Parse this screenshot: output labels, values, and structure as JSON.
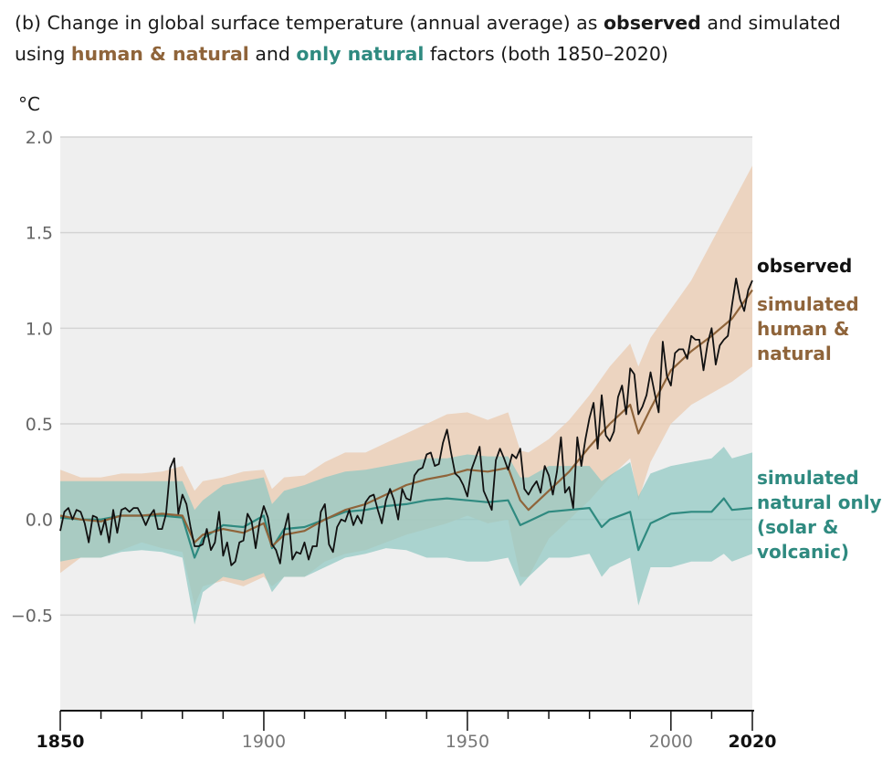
{
  "title": {
    "part1": "(b) Change in global surface temperature (annual average) as ",
    "observed": "observed",
    "part2": " and simulated using ",
    "human_natural": "human & natural",
    "part3": " and ",
    "only_natural": "only natural",
    "part4": " factors (both 1850–2020)"
  },
  "colors": {
    "observed": "#111111",
    "human_natural": "#8f643a",
    "human_natural_band": "#ebcdb4",
    "natural": "#2f8a80",
    "natural_band": "#8fc8c2",
    "plot_bg": "#efefef",
    "grid": "#d4d4d4"
  },
  "chart_data": {
    "type": "line",
    "ylabel": "°C",
    "ylim": [
      -1.0,
      2.0
    ],
    "xlim": [
      1850,
      2020
    ],
    "y_ticks": [
      "2.0",
      "1.5",
      "1.0",
      "0.5",
      "0.0",
      "−0.5"
    ],
    "y_tick_values": [
      2.0,
      1.5,
      1.0,
      0.5,
      0.0,
      -0.5
    ],
    "x_ticks": [
      {
        "label": "1850",
        "value": 1850,
        "bold": true
      },
      {
        "label": "1900",
        "value": 1900,
        "bold": false
      },
      {
        "label": "1950",
        "value": 1950,
        "bold": false
      },
      {
        "label": "2000",
        "value": 2000,
        "bold": false
      },
      {
        "label": "2020",
        "value": 2020,
        "bold": true
      }
    ],
    "grid": true,
    "series": [
      {
        "name": "observed",
        "label_lines": [
          "observed"
        ],
        "x": [
          1850,
          1851,
          1852,
          1853,
          1854,
          1855,
          1856,
          1857,
          1858,
          1859,
          1860,
          1861,
          1862,
          1863,
          1864,
          1865,
          1866,
          1867,
          1868,
          1869,
          1870,
          1871,
          1872,
          1873,
          1874,
          1875,
          1876,
          1877,
          1878,
          1879,
          1880,
          1881,
          1882,
          1883,
          1884,
          1885,
          1886,
          1887,
          1888,
          1889,
          1890,
          1891,
          1892,
          1893,
          1894,
          1895,
          1896,
          1897,
          1898,
          1899,
          1900,
          1901,
          1902,
          1903,
          1904,
          1905,
          1906,
          1907,
          1908,
          1909,
          1910,
          1911,
          1912,
          1913,
          1914,
          1915,
          1916,
          1917,
          1918,
          1919,
          1920,
          1921,
          1922,
          1923,
          1924,
          1925,
          1926,
          1927,
          1928,
          1929,
          1930,
          1931,
          1932,
          1933,
          1934,
          1935,
          1936,
          1937,
          1938,
          1939,
          1940,
          1941,
          1942,
          1943,
          1944,
          1945,
          1946,
          1947,
          1948,
          1949,
          1950,
          1951,
          1952,
          1953,
          1954,
          1955,
          1956,
          1957,
          1958,
          1959,
          1960,
          1961,
          1962,
          1963,
          1964,
          1965,
          1966,
          1967,
          1968,
          1969,
          1970,
          1971,
          1972,
          1973,
          1974,
          1975,
          1976,
          1977,
          1978,
          1979,
          1980,
          1981,
          1982,
          1983,
          1984,
          1985,
          1986,
          1987,
          1988,
          1989,
          1990,
          1991,
          1992,
          1993,
          1994,
          1995,
          1996,
          1997,
          1998,
          1999,
          2000,
          2001,
          2002,
          2003,
          2004,
          2005,
          2006,
          2007,
          2008,
          2009,
          2010,
          2011,
          2012,
          2013,
          2014,
          2015,
          2016,
          2017,
          2018,
          2019,
          2020
        ],
        "values": [
          -0.06,
          0.04,
          0.06,
          0.0,
          0.05,
          0.04,
          -0.02,
          -0.12,
          0.02,
          0.01,
          -0.08,
          0.0,
          -0.12,
          0.05,
          -0.07,
          0.05,
          0.06,
          0.04,
          0.06,
          0.06,
          0.02,
          -0.03,
          0.02,
          0.05,
          -0.05,
          -0.05,
          0.03,
          0.27,
          0.32,
          0.03,
          0.13,
          0.08,
          -0.04,
          -0.14,
          -0.14,
          -0.13,
          -0.05,
          -0.16,
          -0.12,
          0.04,
          -0.19,
          -0.12,
          -0.24,
          -0.22,
          -0.12,
          -0.11,
          0.03,
          -0.01,
          -0.15,
          -0.01,
          0.07,
          0.01,
          -0.13,
          -0.16,
          -0.23,
          -0.06,
          0.03,
          -0.21,
          -0.17,
          -0.18,
          -0.12,
          -0.21,
          -0.14,
          -0.14,
          0.04,
          0.08,
          -0.13,
          -0.17,
          -0.04,
          0.0,
          -0.01,
          0.05,
          -0.03,
          0.02,
          -0.02,
          0.09,
          0.12,
          0.13,
          0.05,
          -0.02,
          0.1,
          0.16,
          0.1,
          0.0,
          0.16,
          0.11,
          0.1,
          0.23,
          0.26,
          0.27,
          0.34,
          0.35,
          0.28,
          0.29,
          0.4,
          0.47,
          0.35,
          0.24,
          0.22,
          0.18,
          0.12,
          0.26,
          0.32,
          0.38,
          0.15,
          0.1,
          0.05,
          0.31,
          0.37,
          0.32,
          0.26,
          0.34,
          0.32,
          0.37,
          0.16,
          0.13,
          0.17,
          0.2,
          0.14,
          0.28,
          0.23,
          0.13,
          0.25,
          0.43,
          0.14,
          0.17,
          0.06,
          0.43,
          0.28,
          0.42,
          0.53,
          0.61,
          0.37,
          0.65,
          0.44,
          0.41,
          0.46,
          0.64,
          0.7,
          0.55,
          0.79,
          0.76,
          0.55,
          0.59,
          0.65,
          0.77,
          0.66,
          0.56,
          0.93,
          0.75,
          0.7,
          0.87,
          0.89,
          0.89,
          0.84,
          0.96,
          0.94,
          0.94,
          0.78,
          0.92,
          1.0,
          0.81,
          0.91,
          0.94,
          0.96,
          1.12,
          1.26,
          1.15,
          1.09,
          1.2,
          1.25
        ]
      },
      {
        "name": "simulated human & natural",
        "label_lines": [
          "simulated",
          "human &",
          "natural"
        ],
        "x": [
          1850,
          1855,
          1860,
          1865,
          1870,
          1875,
          1880,
          1883,
          1885,
          1890,
          1895,
          1900,
          1902,
          1905,
          1910,
          1915,
          1920,
          1925,
          1930,
          1935,
          1940,
          1945,
          1950,
          1955,
          1960,
          1963,
          1965,
          1970,
          1975,
          1980,
          1985,
          1990,
          1992,
          1995,
          2000,
          2005,
          2010,
          2015,
          2020
        ],
        "values": [
          0.02,
          0.0,
          -0.01,
          0.02,
          0.02,
          0.03,
          0.02,
          -0.12,
          -0.08,
          -0.05,
          -0.07,
          -0.02,
          -0.14,
          -0.08,
          -0.06,
          0.0,
          0.05,
          0.08,
          0.13,
          0.18,
          0.21,
          0.23,
          0.26,
          0.25,
          0.27,
          0.1,
          0.05,
          0.15,
          0.25,
          0.38,
          0.5,
          0.6,
          0.45,
          0.58,
          0.78,
          0.88,
          0.96,
          1.05,
          1.2
        ],
        "band_low": [
          -0.28,
          -0.2,
          -0.2,
          -0.16,
          -0.12,
          -0.15,
          -0.17,
          -0.45,
          -0.35,
          -0.32,
          -0.35,
          -0.3,
          -0.35,
          -0.3,
          -0.3,
          -0.22,
          -0.18,
          -0.16,
          -0.12,
          -0.08,
          -0.05,
          -0.02,
          0.02,
          -0.02,
          0.0,
          -0.3,
          -0.3,
          -0.1,
          0.0,
          0.1,
          0.22,
          0.32,
          0.1,
          0.3,
          0.5,
          0.6,
          0.66,
          0.72,
          0.8
        ],
        "band_high": [
          0.26,
          0.22,
          0.22,
          0.24,
          0.24,
          0.25,
          0.28,
          0.15,
          0.2,
          0.22,
          0.25,
          0.26,
          0.16,
          0.22,
          0.23,
          0.3,
          0.35,
          0.35,
          0.4,
          0.45,
          0.5,
          0.55,
          0.56,
          0.52,
          0.56,
          0.36,
          0.35,
          0.42,
          0.52,
          0.65,
          0.8,
          0.92,
          0.8,
          0.95,
          1.1,
          1.25,
          1.45,
          1.65,
          1.85
        ]
      },
      {
        "name": "simulated natural only (solar & volcanic)",
        "label_lines": [
          "simulated",
          "natural only",
          "(solar &",
          "volcanic)"
        ],
        "x": [
          1850,
          1855,
          1860,
          1865,
          1870,
          1875,
          1880,
          1883,
          1885,
          1890,
          1895,
          1900,
          1902,
          1905,
          1910,
          1915,
          1920,
          1925,
          1930,
          1935,
          1940,
          1945,
          1950,
          1955,
          1960,
          1963,
          1965,
          1970,
          1975,
          1980,
          1983,
          1985,
          1990,
          1992,
          1995,
          2000,
          2005,
          2010,
          2013,
          2015,
          2020
        ],
        "values": [
          0.01,
          0.0,
          0.0,
          0.02,
          0.02,
          0.02,
          0.01,
          -0.2,
          -0.1,
          -0.03,
          -0.04,
          0.02,
          -0.15,
          -0.05,
          -0.04,
          0.0,
          0.04,
          0.05,
          0.07,
          0.08,
          0.1,
          0.11,
          0.1,
          0.09,
          0.1,
          -0.03,
          -0.01,
          0.04,
          0.05,
          0.06,
          -0.04,
          0.0,
          0.04,
          -0.16,
          -0.02,
          0.03,
          0.04,
          0.04,
          0.11,
          0.05,
          0.06
        ],
        "band_low": [
          -0.22,
          -0.2,
          -0.2,
          -0.17,
          -0.16,
          -0.17,
          -0.2,
          -0.55,
          -0.38,
          -0.3,
          -0.32,
          -0.28,
          -0.38,
          -0.3,
          -0.3,
          -0.25,
          -0.2,
          -0.18,
          -0.15,
          -0.16,
          -0.2,
          -0.2,
          -0.22,
          -0.22,
          -0.2,
          -0.35,
          -0.3,
          -0.2,
          -0.2,
          -0.18,
          -0.3,
          -0.25,
          -0.2,
          -0.45,
          -0.25,
          -0.25,
          -0.22,
          -0.22,
          -0.18,
          -0.22,
          -0.18
        ],
        "band_high": [
          0.2,
          0.2,
          0.2,
          0.2,
          0.2,
          0.2,
          0.2,
          0.05,
          0.1,
          0.18,
          0.2,
          0.22,
          0.08,
          0.15,
          0.18,
          0.22,
          0.25,
          0.26,
          0.28,
          0.3,
          0.32,
          0.32,
          0.34,
          0.33,
          0.33,
          0.22,
          0.22,
          0.28,
          0.28,
          0.28,
          0.2,
          0.23,
          0.3,
          0.12,
          0.24,
          0.28,
          0.3,
          0.32,
          0.38,
          0.32,
          0.35
        ]
      }
    ]
  }
}
